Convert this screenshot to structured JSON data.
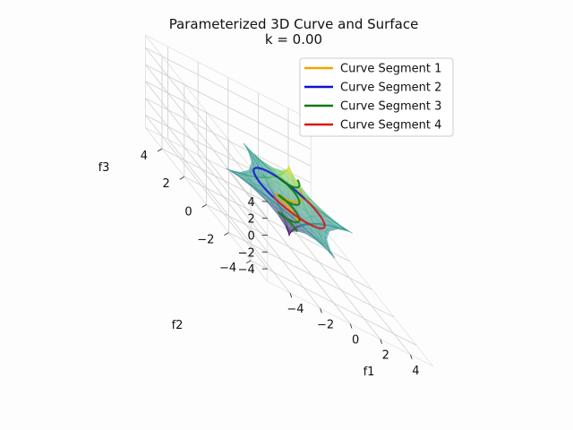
{
  "chart_data": {
    "type": "3d-line-surface",
    "title": "Parameterized 3D Curve and Surface",
    "subtitle": "k = 0.00",
    "xlabel": "f1",
    "ylabel": "f2",
    "zlabel": "f3",
    "xlim": [
      -5,
      5
    ],
    "ylim": [
      -5,
      5
    ],
    "zlim": [
      -5,
      5
    ],
    "xticks": [
      "−4",
      "−2",
      "0",
      "2",
      "4"
    ],
    "yticks": [
      "−4",
      "−2",
      "0",
      "2",
      "4"
    ],
    "zticks": [
      "−4",
      "−2",
      "0",
      "2",
      "4"
    ],
    "legend_placement": "upper-right",
    "series": [
      {
        "name": "Curve Segment 1",
        "color": "#f5a300"
      },
      {
        "name": "Curve Segment 2",
        "color": "#1010d0"
      },
      {
        "name": "Curve Segment 3",
        "color": "#107a10"
      },
      {
        "name": "Curve Segment 4",
        "color": "#dd1111"
      }
    ],
    "surface_colormap": "viridis",
    "surface_alpha": 0.35
  }
}
